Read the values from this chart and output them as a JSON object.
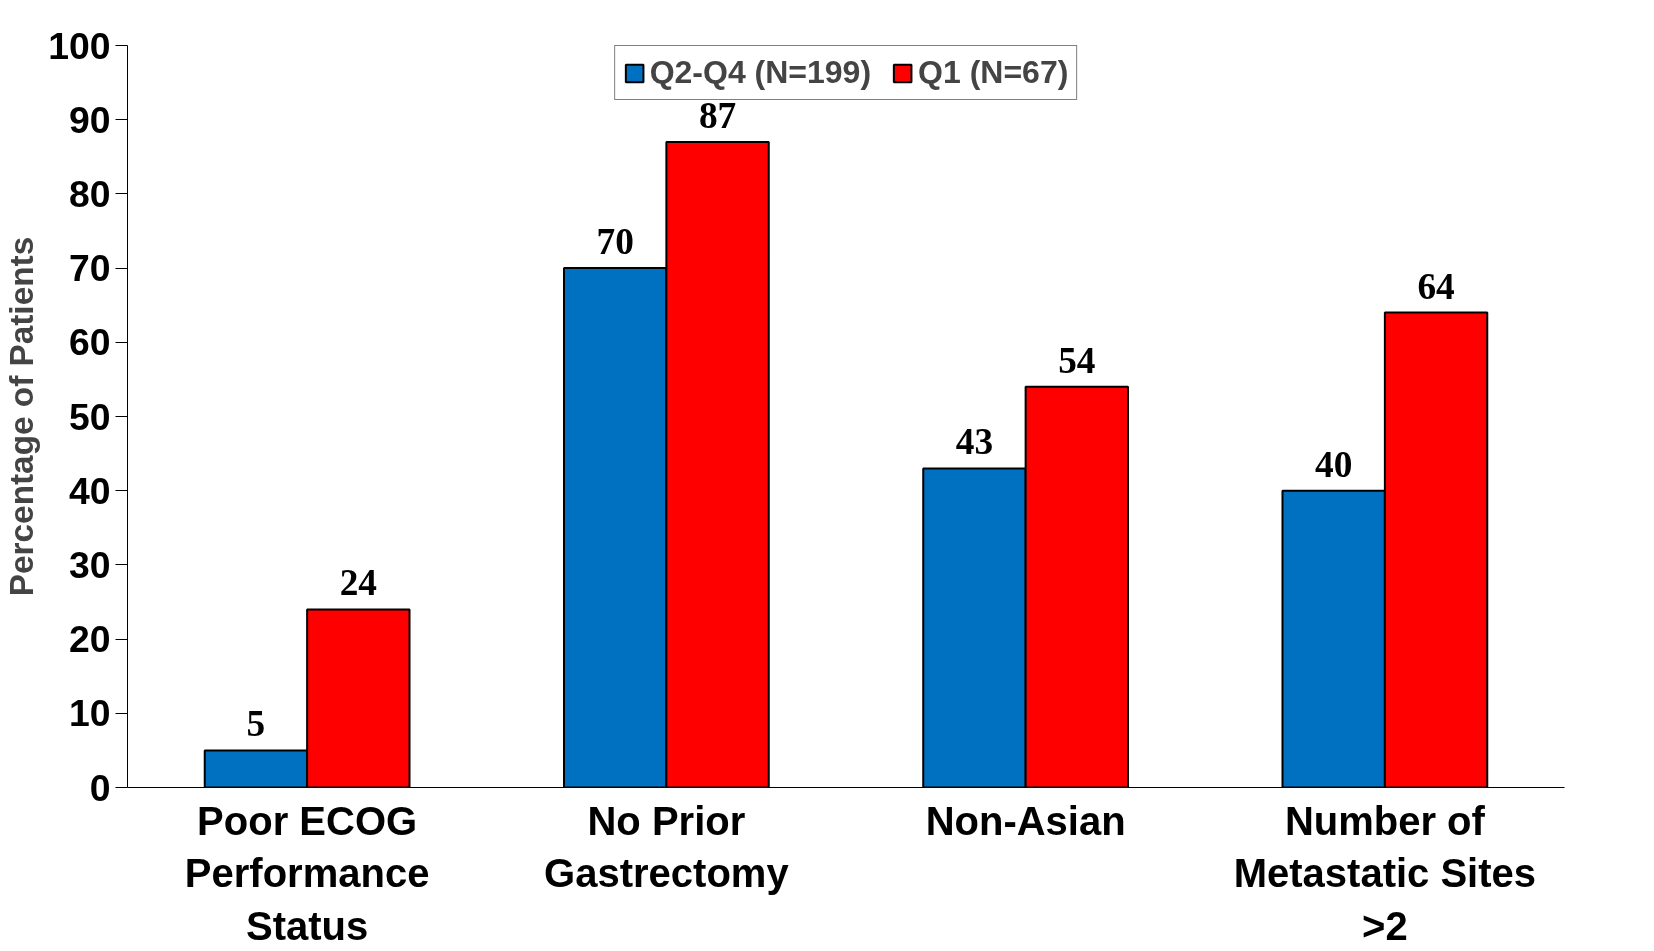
{
  "chart_data": {
    "type": "bar",
    "ylabel": "Percentage of Patients",
    "categories": [
      "Poor ECOG Performance Status",
      "No Prior Gastrectomy",
      "Non-Asian",
      "Number of Metastatic Sites >2"
    ],
    "series": [
      {
        "name": "Q2-Q4 (N=199)",
        "color": "#0070c0",
        "values": [
          5,
          70,
          43,
          40
        ]
      },
      {
        "name": "Q1 (N=67)",
        "color": "#ff0000",
        "values": [
          24,
          87,
          54,
          64
        ]
      }
    ],
    "ylim": [
      0,
      100
    ],
    "yticks": [
      0,
      10,
      20,
      30,
      40,
      50,
      60,
      70,
      80,
      90,
      100
    ],
    "data_labels": true,
    "grid": false,
    "legend": "top"
  }
}
